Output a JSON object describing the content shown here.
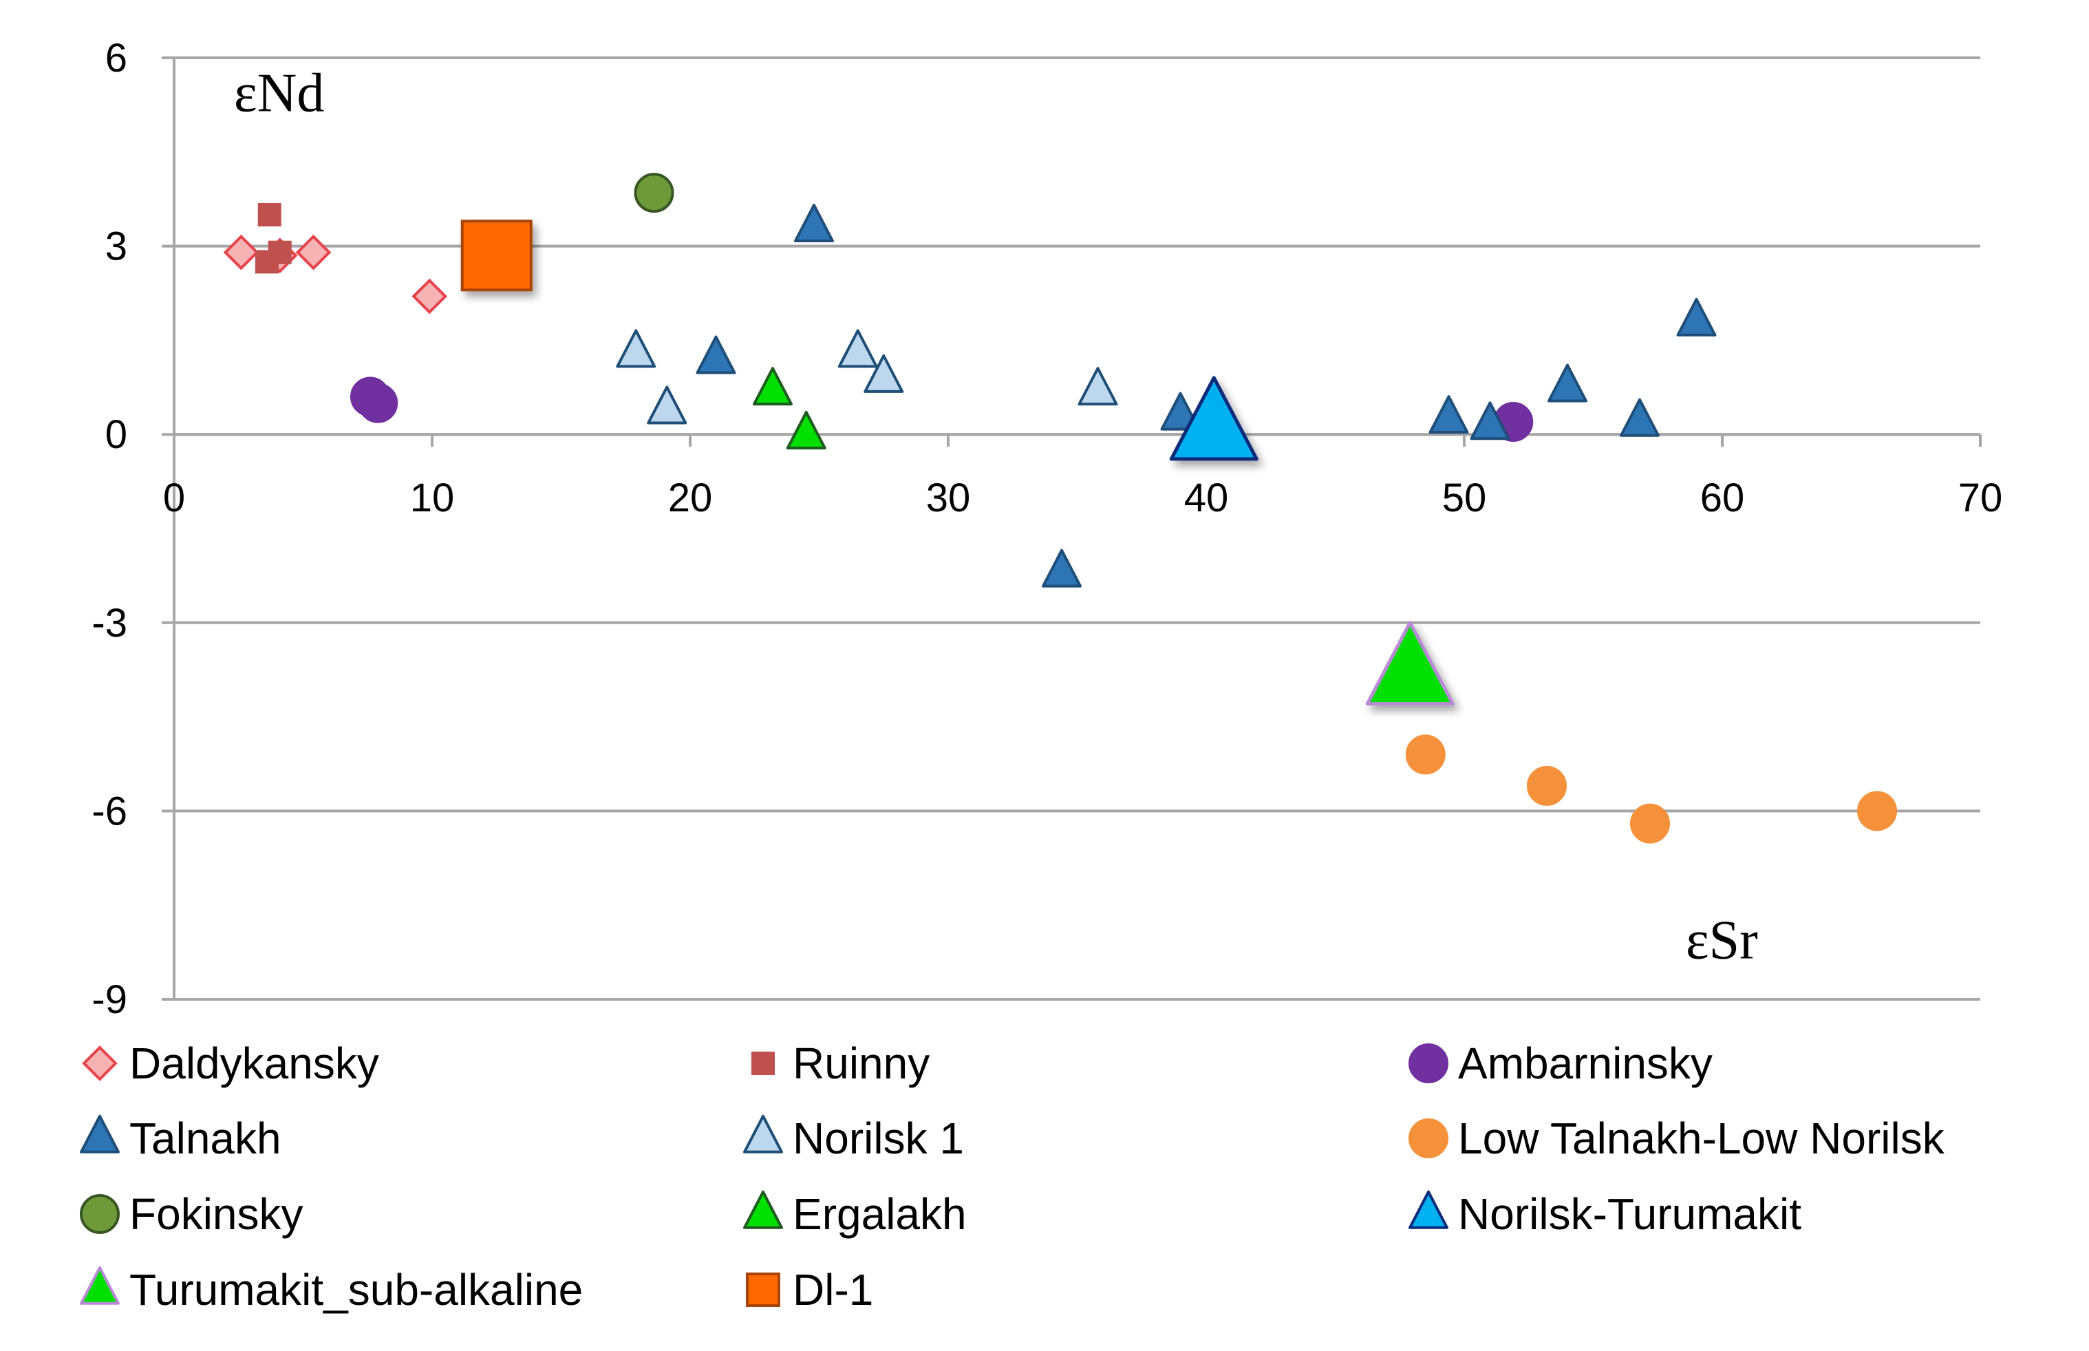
{
  "chart_data": {
    "type": "scatter",
    "title": "",
    "xlabel": "εSr",
    "ylabel": "εNd",
    "xlim": [
      0,
      70
    ],
    "ylim": [
      -9,
      6
    ],
    "xticks": [
      0,
      10,
      20,
      30,
      40,
      50,
      60,
      70
    ],
    "yticks": [
      6,
      3,
      0,
      -3,
      -6,
      -9
    ],
    "grid": "horizontal",
    "legend_position": "bottom",
    "series": [
      {
        "name": "Daldykansky",
        "marker": "diamond-open",
        "color": "#E8434A",
        "fill": "#F7B3B3",
        "points": [
          [
            2.6,
            2.9
          ],
          [
            4.1,
            2.85
          ],
          [
            5.4,
            2.9
          ],
          [
            9.9,
            2.2
          ]
        ]
      },
      {
        "name": "Ruinny",
        "marker": "square-small",
        "color": "#C0504D",
        "fill": "#C0504D",
        "points": [
          [
            3.7,
            3.5
          ],
          [
            4.1,
            2.9
          ],
          [
            3.6,
            2.75
          ]
        ]
      },
      {
        "name": "Ambarninsky",
        "marker": "circle",
        "color": "#7030A0",
        "fill": "#7030A0",
        "points": [
          [
            7.6,
            0.6
          ],
          [
            7.9,
            0.5
          ],
          [
            51.9,
            0.2
          ]
        ]
      },
      {
        "name": "Talnakh",
        "marker": "triangle",
        "color": "#1F4E79",
        "fill": "#2E75B6",
        "points": [
          [
            24.8,
            3.3
          ],
          [
            21.0,
            1.2
          ],
          [
            34.4,
            -2.2
          ],
          [
            39.0,
            0.3
          ],
          [
            49.4,
            0.25
          ],
          [
            51.0,
            0.15
          ],
          [
            54.0,
            0.75
          ],
          [
            56.8,
            0.2
          ],
          [
            59.0,
            1.8
          ]
        ]
      },
      {
        "name": "Norilsk 1",
        "marker": "triangle",
        "color": "#1F4E79",
        "fill": "#BDD7EE",
        "points": [
          [
            17.9,
            1.3
          ],
          [
            19.1,
            0.4
          ],
          [
            26.5,
            1.3
          ],
          [
            27.5,
            0.9
          ],
          [
            35.8,
            0.7
          ]
        ]
      },
      {
        "name": "Low Talnakh-Low Norilsk",
        "marker": "circle",
        "color": "#F4913A",
        "fill": "#F4913A",
        "points": [
          [
            48.5,
            -5.1
          ],
          [
            53.2,
            -5.6
          ],
          [
            57.2,
            -6.2
          ],
          [
            66.0,
            -6.0
          ]
        ]
      },
      {
        "name": "Fokinsky",
        "marker": "circle",
        "color": "#375623",
        "fill": "#6E9A3A",
        "points": [
          [
            18.6,
            3.85
          ]
        ]
      },
      {
        "name": "Ergalakh",
        "marker": "triangle",
        "color": "#1E5C1E",
        "fill": "#00E000",
        "points": [
          [
            23.2,
            0.7
          ],
          [
            24.5,
            0.0
          ]
        ]
      },
      {
        "name": "Norilsk-Turumakit",
        "marker": "triangle-large",
        "color": "#0A2A7A",
        "fill": "#00B0F0",
        "points": [
          [
            40.3,
            0.1
          ]
        ]
      },
      {
        "name": "Turumakit_sub-alkaline",
        "marker": "triangle-large",
        "color": "#B98BD6",
        "fill": "#00E000",
        "points": [
          [
            47.9,
            -3.8
          ]
        ]
      },
      {
        "name": "Dl-1",
        "marker": "square-large",
        "color": "#A84400",
        "fill": "#FF6A00",
        "points": [
          [
            12.5,
            2.85
          ]
        ]
      }
    ]
  }
}
